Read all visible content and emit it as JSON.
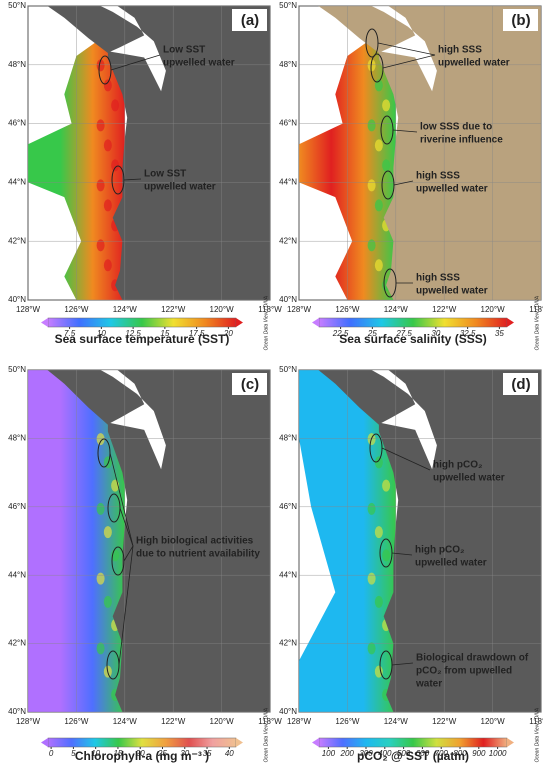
{
  "map": {
    "xlim": [
      -128,
      -118
    ],
    "ylim": [
      40,
      50
    ],
    "xticks": [
      {
        "value": -128,
        "label": "128°W"
      },
      {
        "value": -126,
        "label": "126°W"
      },
      {
        "value": -124,
        "label": "124°W"
      },
      {
        "value": -122,
        "label": "122°W"
      },
      {
        "value": -120,
        "label": "120°W"
      },
      {
        "value": -118,
        "label": "118°W"
      }
    ],
    "yticks": [
      {
        "value": 40,
        "label": "40°N"
      },
      {
        "value": 42,
        "label": "42°N"
      },
      {
        "value": 44,
        "label": "44°N"
      },
      {
        "value": 46,
        "label": "46°N"
      },
      {
        "value": 48,
        "label": "48°N"
      },
      {
        "value": 50,
        "label": "50°N"
      }
    ],
    "watermark": "Ocean Data View / DIVA"
  },
  "panels": [
    {
      "label": "(a)",
      "land_color": "#5a5a5a",
      "colorbar": {
        "title": "Sea surface temperature (SST)",
        "lim": [
          5.8,
          20.6
        ],
        "ticks": [
          7.5,
          10,
          12.5,
          15,
          17.5,
          20
        ],
        "colors": [
          "#c77dff",
          "#3f6fff",
          "#1ec8e6",
          "#37c84a",
          "#f0e030",
          "#f08a20",
          "#e02020"
        ]
      },
      "annotations": [
        {
          "lines": [
            "Low SST",
            "upwelled water"
          ]
        },
        {
          "lines": [
            "Low SST",
            "upwelled water"
          ]
        }
      ]
    },
    {
      "label": "(b)",
      "land_color": "#b9a27e",
      "colorbar": {
        "title": "Sea surface salinity (SSS)",
        "lim": [
          20.8,
          35.6
        ],
        "ticks": [
          22.5,
          25,
          27.5,
          30,
          32.5,
          35
        ],
        "colors": [
          "#c77dff",
          "#3f6fff",
          "#1ec8e6",
          "#37c84a",
          "#f0e030",
          "#f08a20",
          "#e02020"
        ]
      },
      "annotations": [
        {
          "lines": [
            "high SSS",
            "upwelled water"
          ]
        },
        {
          "lines": [
            "low SSS due to",
            "riverine influence"
          ]
        },
        {
          "lines": [
            "high SSS",
            "upwelled water"
          ]
        },
        {
          "lines": [
            "high SSS",
            "upwelled water"
          ]
        }
      ]
    },
    {
      "label": "(c)",
      "land_color": "#5a5a5a",
      "colorbar": {
        "title": "Chlorophyll-a (mg m⁻³ )",
        "lim": [
          -0.7,
          41.5
        ],
        "ticks": [
          0,
          5,
          10,
          15,
          20,
          25,
          30,
          35,
          40
        ],
        "colors": [
          "#b070ff",
          "#4f6fff",
          "#1ec8e6",
          "#37c84a",
          "#e0e040",
          "#f0a040",
          "#e05050",
          "#f0a0a0",
          "#f0c090"
        ]
      },
      "annotations": [
        {
          "lines": [
            "High biological activities",
            "due to nutrient availability"
          ]
        }
      ]
    },
    {
      "label": "(d)",
      "land_color": "#5a5a5a",
      "colorbar": {
        "title": "pCO₂ @ SST (µatm)",
        "lim": [
          50,
          1050
        ],
        "ticks": [
          100,
          200,
          300,
          400,
          500,
          600,
          700,
          800,
          900,
          1000
        ],
        "colors": [
          "#c77dff",
          "#4f6fff",
          "#1eb8f0",
          "#2ad0c0",
          "#37c84a",
          "#d0e040",
          "#f0a030",
          "#e02020",
          "#f0b080"
        ]
      },
      "annotations": [
        {
          "lines": [
            "high pCO₂",
            "upwelled water"
          ]
        },
        {
          "lines": [
            "high pCO₂",
            "upwelled water"
          ]
        },
        {
          "lines": [
            "Biological drawdown of",
            "pCO₂ from upwelled",
            "water"
          ]
        }
      ]
    }
  ]
}
